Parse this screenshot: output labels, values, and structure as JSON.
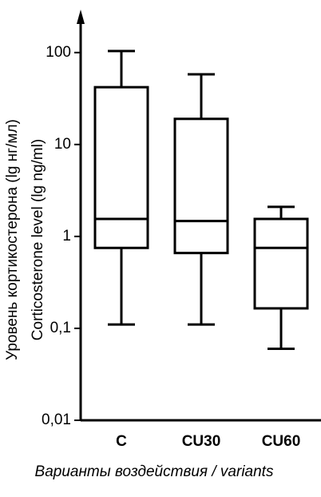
{
  "chart_data": {
    "type": "box",
    "y_label_lines": [
      "Уровень кортикостерона (lg нг/мл)",
      "Corticosterone level  (lg ng/ml)"
    ],
    "x_label": "Варианты воздействия / variants",
    "categories": [
      "C",
      "CU30",
      "CU60"
    ],
    "stats": {
      "min": [
        0.11,
        0.11,
        0.06
      ],
      "q1": [
        0.75,
        0.66,
        0.165
      ],
      "median": [
        1.55,
        1.47,
        0.75
      ],
      "q3": [
        42,
        19,
        1.55
      ],
      "max": [
        104,
        58,
        2.1
      ]
    },
    "color": "#000000",
    "log_scale": true,
    "ylim": [
      0.01,
      250
    ],
    "yticks": [
      {
        "value": 0.01,
        "label": "0,01"
      },
      {
        "value": 0.1,
        "label": "0,1"
      },
      1,
      10,
      100
    ]
  }
}
